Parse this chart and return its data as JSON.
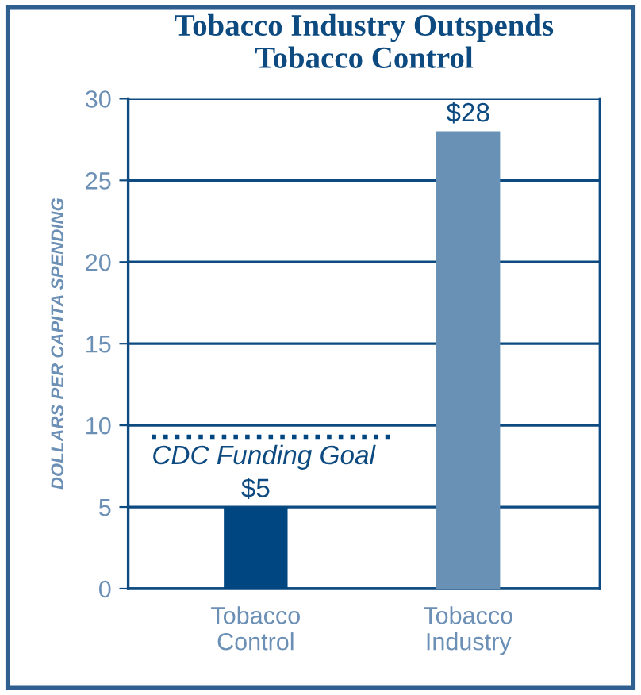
{
  "chart_data": {
    "type": "bar",
    "title": "Tobacco Industry Outspends\nTobacco Control",
    "ylabel": "DOLLARS PER CAPITA SPENDING",
    "categories": [
      "Tobacco\nControl",
      "Tobacco\nIndustry"
    ],
    "values": [
      5,
      28
    ],
    "colors": [
      "#004680",
      "#6891b5"
    ],
    "value_labels": [
      "$5",
      "$28"
    ],
    "ylim": [
      0,
      30
    ],
    "yticks": [
      0,
      5,
      10,
      15,
      20,
      25,
      30
    ],
    "grid": "y",
    "ref_lines": [
      {
        "axis": "y",
        "value": 9.3,
        "label": "CDC Funding Goal",
        "color": "#004680",
        "line_style": "dotted"
      }
    ]
  }
}
